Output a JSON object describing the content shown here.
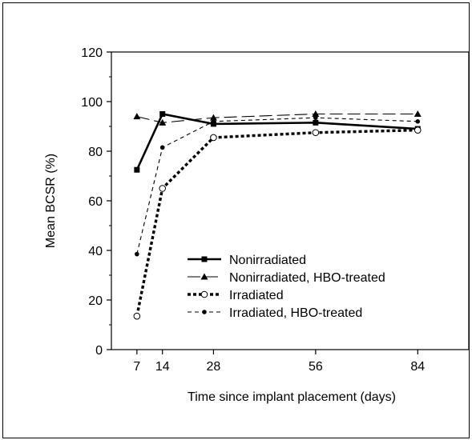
{
  "chart_data": {
    "type": "line",
    "title": "",
    "xlabel": "Time since implant placement (days)",
    "ylabel": "Mean BCSR (%)",
    "x": [
      7,
      14,
      28,
      56,
      84
    ],
    "xticks": [
      7,
      14,
      28,
      56,
      84
    ],
    "xlim": [
      0,
      98
    ],
    "ylim": [
      0,
      120
    ],
    "yticks": [
      0,
      20,
      40,
      60,
      80,
      100,
      120
    ],
    "grid": false,
    "legend_position": "lower-right",
    "series": [
      {
        "name": "Nonirradiated",
        "values": [
          72.5,
          95,
          91,
          91.5,
          89
        ],
        "line": "solid",
        "marker": "square"
      },
      {
        "name": "Nonirradiated, HBO-treated",
        "values": [
          94,
          91.5,
          93.5,
          95,
          95
        ],
        "line": "longdash",
        "marker": "triangle"
      },
      {
        "name": "Irradiated",
        "values": [
          13.5,
          65,
          85.5,
          87.5,
          88.5
        ],
        "line": "dotted",
        "marker": "open-circle"
      },
      {
        "name": "Irradiated, HBO-treated",
        "values": [
          38.5,
          81.5,
          92,
          93.5,
          92
        ],
        "line": "shortdash",
        "marker": "dot"
      }
    ]
  }
}
